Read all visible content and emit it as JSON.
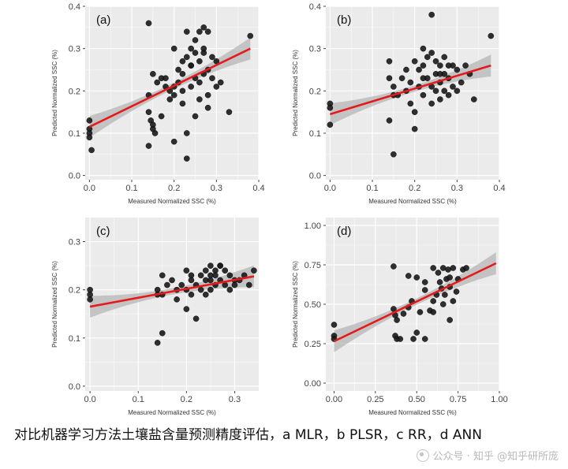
{
  "caption": "对比机器学习方法土壤盐含量预测精度评估，a MLR，b PLSR，c RR，d ANN",
  "watermark": "公众号 · 知乎 @知乎研所庞",
  "colors": {
    "panel_bg": "#ebebeb",
    "grid": "#ffffff",
    "points": "#1a1a1a",
    "fit_line": "#e41a1c",
    "ci_band": "#b5b5b5"
  },
  "chart_data": [
    {
      "type": "scatter",
      "panel_label": "(a)",
      "xlabel": "Measured Normalized SSC (%)",
      "ylabel": "Predicted Normalized SSC (%)",
      "xlim": [
        -0.01,
        0.4
      ],
      "ylim": [
        -0.01,
        0.4
      ],
      "xticks": [
        "0.0",
        "0.1",
        "0.2",
        "0.3",
        "0.4"
      ],
      "yticks": [
        "0.0",
        "0.1",
        "0.2",
        "0.3",
        "0.4"
      ],
      "grid": true,
      "fit_line": {
        "x": [
          0.0,
          0.38
        ],
        "y": [
          0.115,
          0.3
        ]
      },
      "points": {
        "x": [
          0.0,
          0.0,
          0.0,
          0.0,
          0.005,
          0.14,
          0.15,
          0.14,
          0.145,
          0.15,
          0.155,
          0.14,
          0.16,
          0.17,
          0.17,
          0.18,
          0.19,
          0.19,
          0.2,
          0.2,
          0.2,
          0.21,
          0.21,
          0.22,
          0.22,
          0.22,
          0.22,
          0.23,
          0.23,
          0.23,
          0.24,
          0.24,
          0.24,
          0.25,
          0.25,
          0.25,
          0.25,
          0.26,
          0.26,
          0.26,
          0.26,
          0.27,
          0.27,
          0.27,
          0.28,
          0.28,
          0.28,
          0.29,
          0.29,
          0.3,
          0.3,
          0.31,
          0.33,
          0.38,
          0.14,
          0.15,
          0.2,
          0.24,
          0.27,
          0.23,
          0.18,
          0.28
        ],
        "y": [
          0.13,
          0.11,
          0.1,
          0.09,
          0.06,
          0.36,
          0.24,
          0.15,
          0.13,
          0.12,
          0.1,
          0.07,
          0.22,
          0.23,
          0.14,
          0.21,
          0.2,
          0.18,
          0.3,
          0.21,
          0.19,
          0.25,
          0.22,
          0.27,
          0.24,
          0.2,
          0.17,
          0.34,
          0.28,
          0.04,
          0.3,
          0.26,
          0.21,
          0.32,
          0.29,
          0.23,
          0.14,
          0.34,
          0.27,
          0.22,
          0.18,
          0.35,
          0.29,
          0.24,
          0.34,
          0.25,
          0.19,
          0.28,
          0.23,
          0.27,
          0.21,
          0.22,
          0.15,
          0.33,
          0.19,
          0.11,
          0.08,
          0.26,
          0.3,
          0.1,
          0.23,
          0.16
        ]
      }
    },
    {
      "type": "scatter",
      "panel_label": "(b)",
      "xlabel": "Measured Normalized SSC (%)",
      "ylabel": "Predicted Normalized SSC (%)",
      "xlim": [
        -0.01,
        0.4
      ],
      "ylim": [
        -0.01,
        0.4
      ],
      "xticks": [
        "0.0",
        "0.1",
        "0.2",
        "0.3",
        "0.4"
      ],
      "yticks": [
        "0.0",
        "0.1",
        "0.2",
        "0.3",
        "0.4"
      ],
      "grid": true,
      "fit_line": {
        "x": [
          0.0,
          0.38
        ],
        "y": [
          0.145,
          0.26
        ]
      },
      "points": {
        "x": [
          0.0,
          0.0,
          0.0,
          0.14,
          0.14,
          0.15,
          0.15,
          0.16,
          0.17,
          0.18,
          0.18,
          0.19,
          0.19,
          0.2,
          0.2,
          0.21,
          0.21,
          0.22,
          0.22,
          0.22,
          0.23,
          0.23,
          0.24,
          0.24,
          0.24,
          0.25,
          0.25,
          0.25,
          0.26,
          0.26,
          0.26,
          0.27,
          0.27,
          0.27,
          0.28,
          0.28,
          0.29,
          0.29,
          0.3,
          0.3,
          0.31,
          0.32,
          0.33,
          0.34,
          0.38,
          0.14,
          0.15,
          0.2,
          0.24,
          0.26,
          0.22,
          0.28
        ],
        "y": [
          0.17,
          0.16,
          0.12,
          0.27,
          0.23,
          0.21,
          0.05,
          0.19,
          0.23,
          0.25,
          0.2,
          0.22,
          0.17,
          0.27,
          0.11,
          0.25,
          0.21,
          0.3,
          0.26,
          0.19,
          0.28,
          0.23,
          0.38,
          0.29,
          0.21,
          0.27,
          0.24,
          0.2,
          0.26,
          0.22,
          0.18,
          0.28,
          0.24,
          0.2,
          0.23,
          0.19,
          0.26,
          0.21,
          0.25,
          0.2,
          0.22,
          0.26,
          0.24,
          0.18,
          0.33,
          0.13,
          0.19,
          0.15,
          0.17,
          0.24,
          0.23,
          0.26
        ]
      }
    },
    {
      "type": "scatter",
      "panel_label": "(c)",
      "xlabel": "Measured Normalized SSC (%)",
      "ylabel": "Predicted Normalized SSC (%)",
      "xlim": [
        -0.01,
        0.35
      ],
      "ylim": [
        -0.01,
        0.35
      ],
      "xticks": [
        "0.0",
        "0.1",
        "0.2",
        "0.3"
      ],
      "yticks": [
        "0.0",
        "0.1",
        "0.2",
        "0.3"
      ],
      "grid": true,
      "fit_line": {
        "x": [
          0.0,
          0.34
        ],
        "y": [
          0.165,
          0.228
        ]
      },
      "points": {
        "x": [
          0.0,
          0.0,
          0.0,
          0.14,
          0.14,
          0.15,
          0.15,
          0.15,
          0.16,
          0.17,
          0.18,
          0.18,
          0.19,
          0.2,
          0.2,
          0.2,
          0.21,
          0.21,
          0.22,
          0.22,
          0.23,
          0.23,
          0.24,
          0.24,
          0.24,
          0.25,
          0.25,
          0.25,
          0.26,
          0.26,
          0.26,
          0.27,
          0.27,
          0.28,
          0.28,
          0.29,
          0.29,
          0.3,
          0.3,
          0.31,
          0.32,
          0.33,
          0.34,
          0.14,
          0.21,
          0.25,
          0.27
        ],
        "y": [
          0.2,
          0.19,
          0.18,
          0.09,
          0.2,
          0.23,
          0.19,
          0.11,
          0.21,
          0.22,
          0.2,
          0.18,
          0.21,
          0.24,
          0.2,
          0.16,
          0.22,
          0.19,
          0.21,
          0.14,
          0.23,
          0.2,
          0.24,
          0.22,
          0.19,
          0.25,
          0.22,
          0.2,
          0.24,
          0.23,
          0.21,
          0.25,
          0.22,
          0.24,
          0.21,
          0.23,
          0.2,
          0.22,
          0.21,
          0.22,
          0.23,
          0.21,
          0.24,
          0.19,
          0.23,
          0.23,
          0.25
        ]
      }
    },
    {
      "type": "scatter",
      "panel_label": "(d)",
      "xlabel": "Measured Normalized SSC (%)",
      "ylabel": "Predicted Normalized SSC (%)",
      "xlim": [
        -0.05,
        1.0
      ],
      "ylim": [
        -0.05,
        1.05
      ],
      "xticks": [
        "0.00",
        "0.25",
        "0.50",
        "0.75",
        "1.00"
      ],
      "yticks": [
        "0.00",
        "0.25",
        "0.50",
        "0.75",
        "1.00"
      ],
      "grid": true,
      "fit_line": {
        "x": [
          0.0,
          0.98
        ],
        "y": [
          0.265,
          0.76
        ]
      },
      "points": {
        "x": [
          0.0,
          0.0,
          0.0,
          0.36,
          0.36,
          0.37,
          0.37,
          0.38,
          0.4,
          0.42,
          0.45,
          0.47,
          0.48,
          0.5,
          0.5,
          0.52,
          0.55,
          0.55,
          0.58,
          0.6,
          0.6,
          0.62,
          0.63,
          0.64,
          0.65,
          0.66,
          0.67,
          0.68,
          0.69,
          0.7,
          0.7,
          0.72,
          0.74,
          0.75,
          0.78,
          0.8,
          0.38,
          0.45,
          0.55,
          0.6,
          0.66,
          0.7,
          0.72
        ],
        "y": [
          0.37,
          0.3,
          0.28,
          0.74,
          0.47,
          0.43,
          0.3,
          0.28,
          0.28,
          0.44,
          0.68,
          0.52,
          0.28,
          0.67,
          0.32,
          0.45,
          0.59,
          0.28,
          0.46,
          0.73,
          0.52,
          0.56,
          0.7,
          0.64,
          0.6,
          0.73,
          0.56,
          0.66,
          0.72,
          0.67,
          0.4,
          0.73,
          0.58,
          0.66,
          0.72,
          0.73,
          0.4,
          0.48,
          0.64,
          0.45,
          0.5,
          0.61,
          0.52
        ]
      }
    }
  ]
}
